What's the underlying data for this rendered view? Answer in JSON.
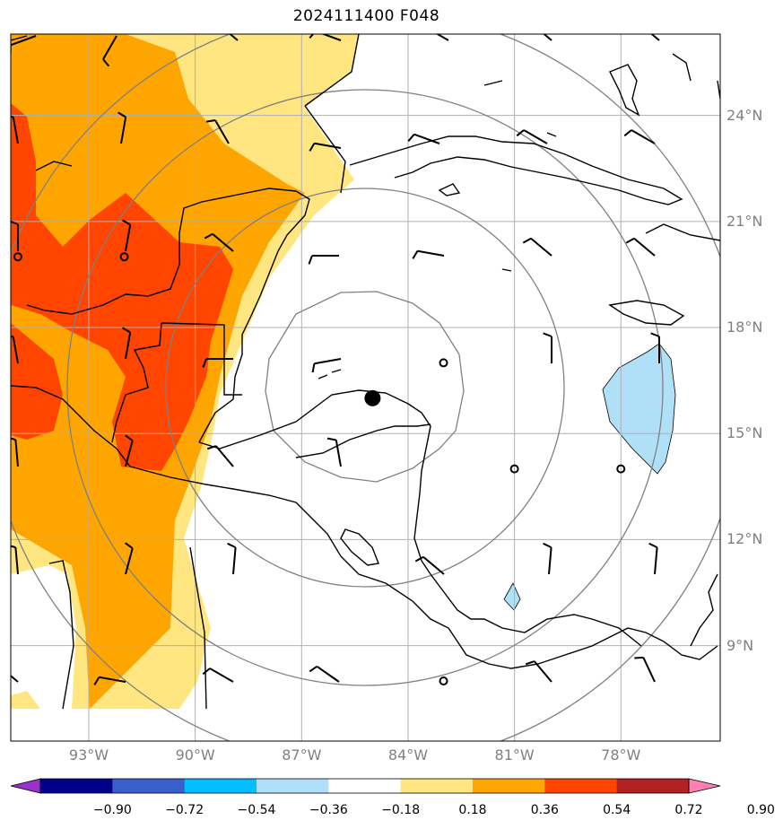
{
  "title": "2024111400 F048",
  "map": {
    "extent": {
      "lon_min": -95.2,
      "lon_max": -75.2,
      "lat_min": 6.3,
      "lat_max": 26.3
    },
    "storm_center": {
      "lon": -85.0,
      "lat": 16.0
    },
    "lon_gridlines": [
      -93,
      -90,
      -87,
      -84,
      -81,
      -78
    ],
    "lat_gridlines": [
      9,
      12,
      15,
      18,
      21,
      24
    ],
    "lon_labels": [
      "93°W",
      "90°W",
      "87°W",
      "84°W",
      "81°W",
      "78°W"
    ],
    "lat_labels": [
      "24°N",
      "21°N",
      "18°N",
      "15°N",
      "12°N",
      "9°N"
    ],
    "range_rings_km": [
      300,
      600,
      900,
      1200
    ],
    "calm_points": [
      {
        "lon": -95.0,
        "lat": 20.0
      },
      {
        "lon": -92.0,
        "lat": 20.0
      },
      {
        "lon": -83.0,
        "lat": 17.0
      },
      {
        "lon": -81.0,
        "lat": 14.0
      },
      {
        "lon": -78.0,
        "lat": 14.0
      },
      {
        "lon": -83.0,
        "lat": 8.0
      }
    ],
    "colors": {
      "land_outline": "#000000",
      "grid": "#b0b0b0",
      "rings": "#808080",
      "center": "#000000"
    }
  },
  "colorbar": {
    "levels": [
      -0.9,
      -0.72,
      -0.54,
      -0.36,
      -0.18,
      0.18,
      0.36,
      0.54,
      0.72,
      0.9
    ],
    "tick_labels": [
      "−0.90",
      "−0.72",
      "−0.54",
      "−0.36",
      "−0.18",
      "0.18",
      "0.36",
      "0.54",
      "0.72",
      "0.90"
    ],
    "colors": [
      "#9932cc",
      "#00008b",
      "#3a5fcd",
      "#00bfff",
      "#b0e0f8",
      "#ffffff",
      "#ffe680",
      "#ffa500",
      "#ff4500",
      "#b22222",
      "#ff80b0"
    ]
  }
}
